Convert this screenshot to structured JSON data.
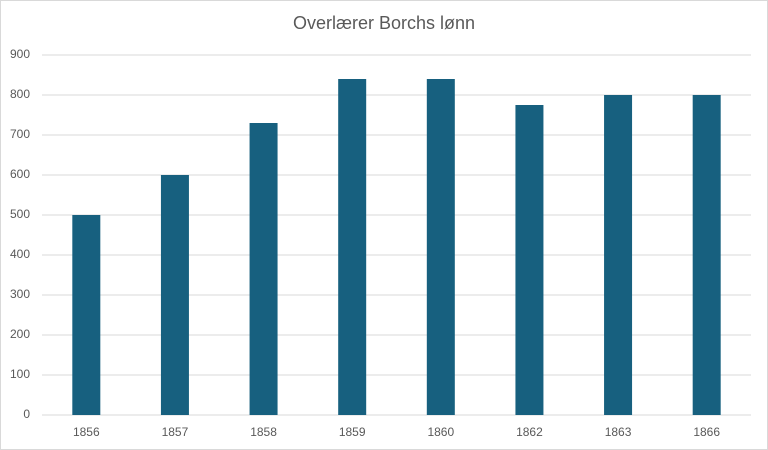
{
  "chart_data": {
    "type": "bar",
    "title": "Overlærer Borchs lønn",
    "categories": [
      "1856",
      "1857",
      "1858",
      "1859",
      "1860",
      "1862",
      "1863",
      "1866"
    ],
    "values": [
      500,
      600,
      730,
      840,
      840,
      775,
      800,
      800
    ],
    "color": "#17607f",
    "ylim": [
      0,
      900
    ],
    "yticks": [
      0,
      100,
      200,
      300,
      400,
      500,
      600,
      700,
      800,
      900
    ],
    "grid": true
  }
}
